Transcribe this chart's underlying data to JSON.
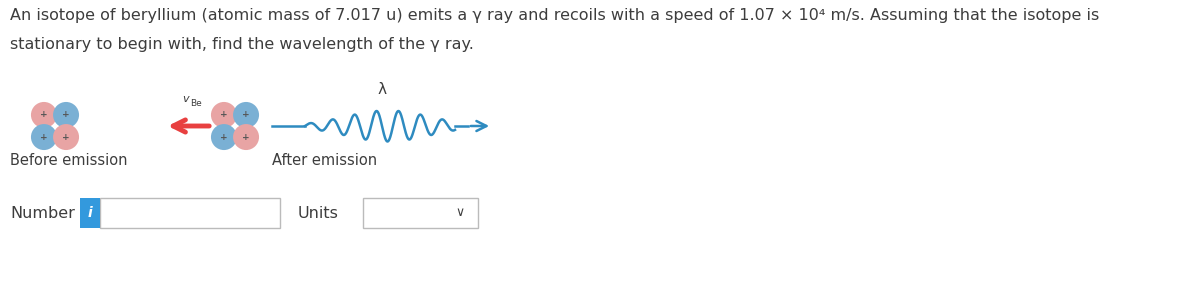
{
  "title_line1": "An isotope of beryllium (atomic mass of 7.017 u) emits a γ ray and recoils with a speed of 1.07 × 10⁴ m/s. Assuming that the isotope is",
  "title_line2": "stationary to begin with, find the wavelength of the γ ray.",
  "before_label": "Before emission",
  "after_label": "After emission",
  "vbe_label_v": "v",
  "vbe_label_be": "Be",
  "lambda_label": "λ",
  "number_label": "Number",
  "units_label": "Units",
  "bg_color": "#ffffff",
  "text_color": "#3d3d3d",
  "blue_color": "#2e8bc0",
  "red_color": "#e84040",
  "pink_color": "#e8a4a4",
  "blue_atom_color": "#7ab0d4",
  "plus_color": "#555555",
  "info_blue": "#3399dd",
  "box_border": "#bbbbbb",
  "title_fontsize": 11.5,
  "label_fontsize": 10.5,
  "atom_r": 0.13
}
